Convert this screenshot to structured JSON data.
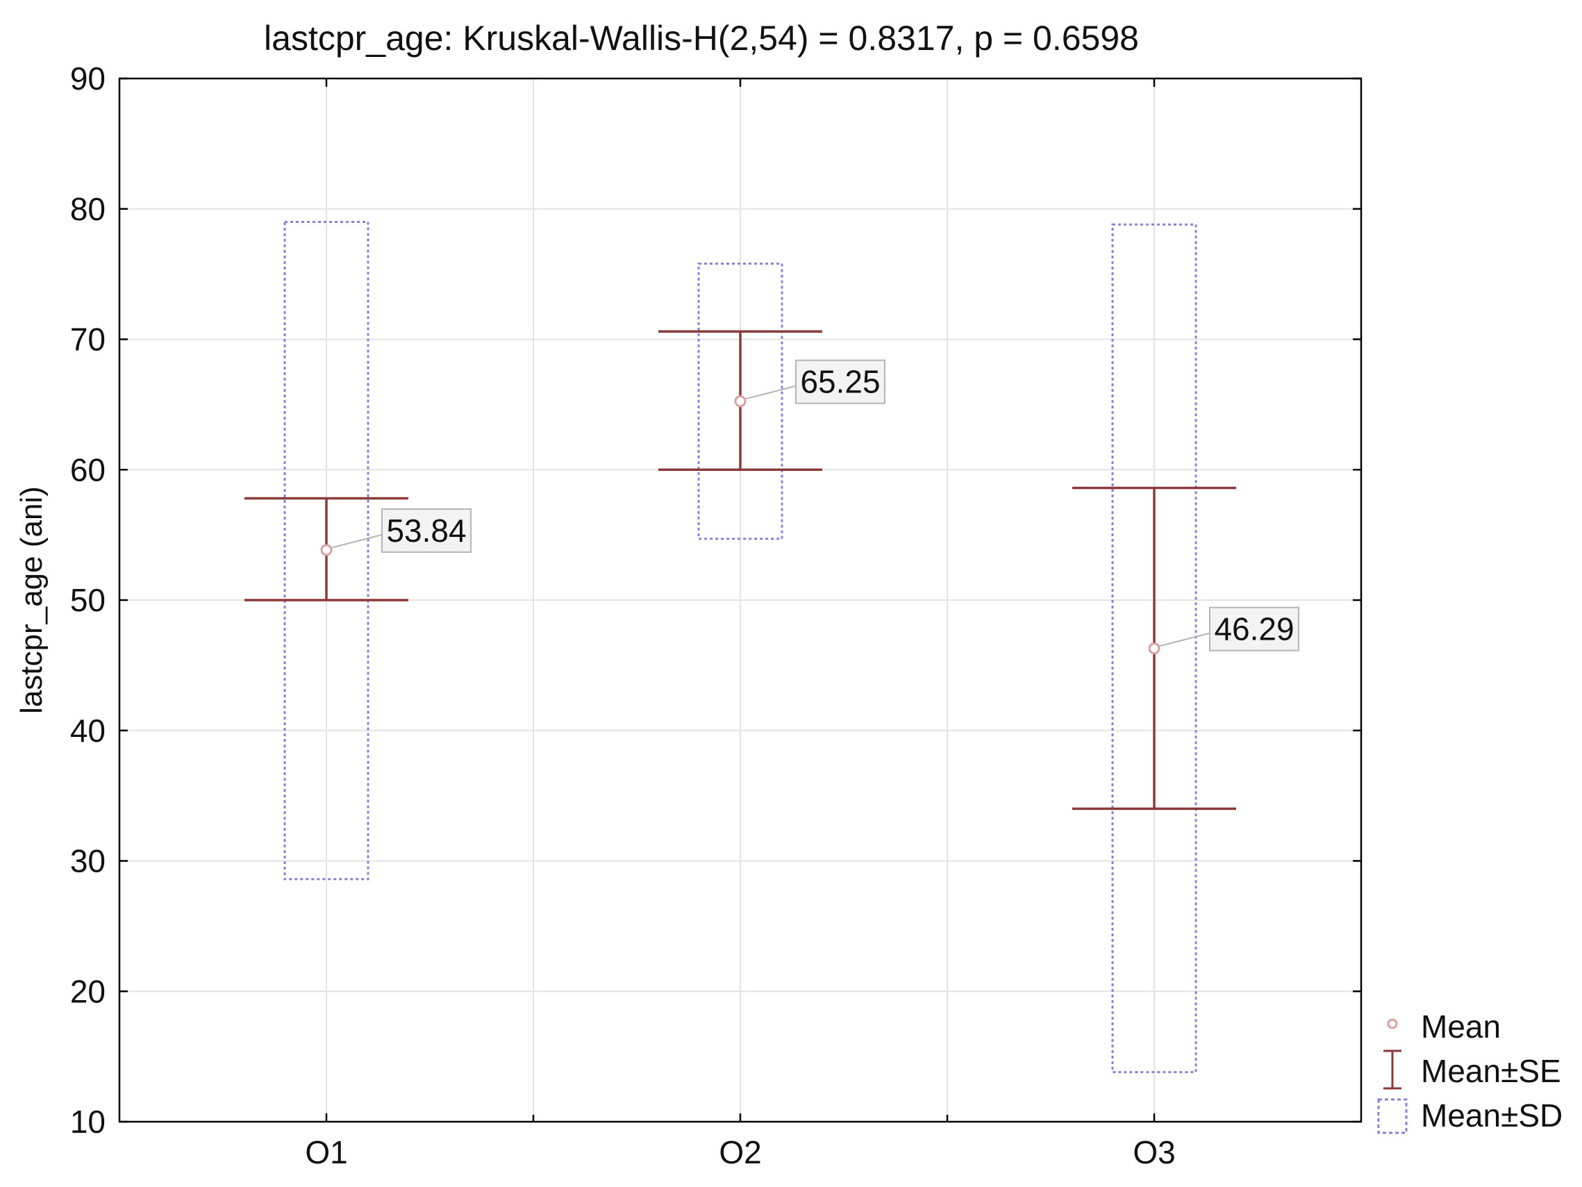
{
  "colors": {
    "background": "#ffffff",
    "grid": "#e3e3e3",
    "axis": "#000000",
    "se_bar": "#8b3a3a",
    "sd_box": "#8a80d8",
    "mean_marker": "#d9a0a0",
    "label_box_fill": "#f3f3f3",
    "label_box_stroke": "#b5b5b5"
  },
  "chart_data": {
    "type": "box",
    "title": "lastcpr_age:  Kruskal-Wallis-H(2,54) = 0.8317, p = 0.6598",
    "xlabel": "",
    "ylabel": "lastcpr_age (ani)",
    "ylim": [
      10,
      90
    ],
    "yticks": [
      10,
      20,
      30,
      40,
      50,
      60,
      70,
      80,
      90
    ],
    "grid": true,
    "categories": [
      "O1",
      "O2",
      "O3"
    ],
    "mean": [
      53.84,
      65.25,
      46.29
    ],
    "mean_labels": [
      "53.84",
      "65.25",
      "46.29"
    ],
    "se_low": [
      50.0,
      60.0,
      34.0
    ],
    "se_high": [
      57.8,
      70.6,
      58.6
    ],
    "sd_low": [
      28.6,
      54.7,
      13.8
    ],
    "sd_high": [
      79.0,
      75.8,
      78.8
    ],
    "legend": {
      "position": "bottom-right",
      "entries": [
        "Mean",
        "Mean±SE",
        "Mean±SD"
      ]
    }
  }
}
